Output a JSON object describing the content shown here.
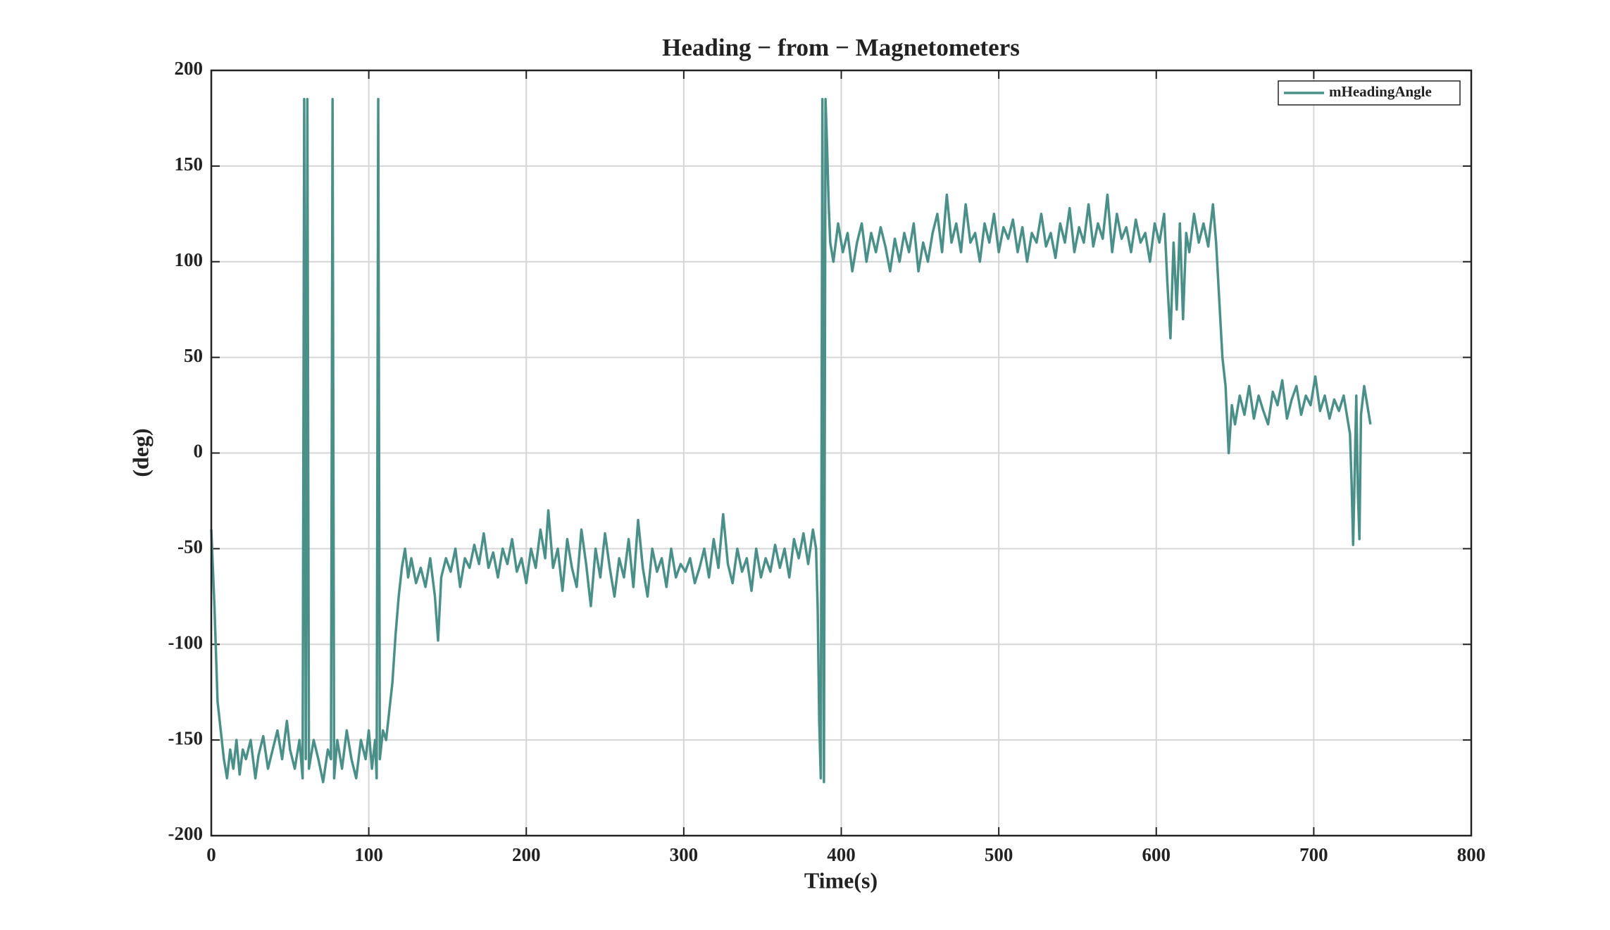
{
  "chart_data": {
    "type": "line",
    "title": "Heading − from − Magnetometers",
    "x_label": "Time(s)",
    "y_label": "(deg)",
    "xlim": [
      0,
      800
    ],
    "xticks": [
      0,
      100,
      200,
      300,
      400,
      500,
      600,
      700,
      800
    ],
    "ylim": [
      -200,
      200
    ],
    "yticks": [
      -200,
      -150,
      -100,
      -50,
      0,
      50,
      100,
      150,
      200
    ],
    "grid": true,
    "legend_position": "upper-right",
    "series": [
      {
        "name": "mHeadingAngle",
        "color": "#4a9088",
        "x": [
          0,
          2,
          4,
          6,
          8,
          10,
          12,
          14,
          16,
          18,
          20,
          22,
          25,
          28,
          30,
          33,
          36,
          39,
          42,
          45,
          48,
          50,
          53,
          56,
          58,
          59,
          60,
          61,
          62,
          65,
          68,
          71,
          74,
          76,
          77,
          78,
          80,
          83,
          86,
          89,
          92,
          95,
          98,
          100,
          102,
          104,
          105,
          106,
          107,
          109,
          111,
          113,
          115,
          117,
          119,
          121,
          123,
          125,
          127,
          130,
          133,
          136,
          139,
          142,
          144,
          146,
          149,
          152,
          155,
          158,
          161,
          164,
          167,
          170,
          173,
          176,
          179,
          182,
          185,
          188,
          191,
          194,
          197,
          200,
          203,
          206,
          209,
          212,
          214,
          217,
          220,
          223,
          226,
          229,
          232,
          235,
          238,
          241,
          244,
          247,
          250,
          253,
          256,
          259,
          262,
          265,
          268,
          271,
          274,
          277,
          280,
          283,
          286,
          289,
          292,
          295,
          298,
          301,
          304,
          307,
          310,
          313,
          316,
          319,
          322,
          325,
          328,
          331,
          334,
          337,
          340,
          343,
          346,
          349,
          352,
          355,
          358,
          361,
          364,
          367,
          370,
          373,
          376,
          379,
          382,
          384,
          385,
          386,
          387,
          388,
          389,
          390,
          391,
          392,
          393,
          395,
          398,
          401,
          404,
          407,
          410,
          413,
          416,
          419,
          422,
          425,
          428,
          431,
          434,
          437,
          440,
          443,
          446,
          449,
          452,
          455,
          458,
          461,
          464,
          467,
          470,
          473,
          476,
          479,
          482,
          485,
          488,
          491,
          494,
          497,
          500,
          503,
          506,
          509,
          512,
          515,
          518,
          521,
          524,
          527,
          530,
          533,
          536,
          539,
          542,
          545,
          548,
          551,
          554,
          557,
          560,
          563,
          566,
          569,
          572,
          575,
          578,
          581,
          584,
          587,
          590,
          593,
          596,
          599,
          602,
          605,
          607,
          609,
          611,
          613,
          615,
          617,
          619,
          621,
          624,
          627,
          630,
          633,
          636,
          638,
          640,
          642,
          644,
          646,
          648,
          650,
          653,
          656,
          659,
          662,
          665,
          668,
          671,
          674,
          677,
          680,
          683,
          686,
          689,
          692,
          695,
          698,
          701,
          704,
          707,
          710,
          713,
          716,
          719,
          721,
          723,
          724,
          725,
          726,
          727,
          728,
          729,
          730,
          732,
          734,
          736
        ],
        "values": [
          -40,
          -80,
          -130,
          -145,
          -160,
          -170,
          -155,
          -165,
          -150,
          -168,
          -155,
          -160,
          -150,
          -170,
          -158,
          -148,
          -165,
          -155,
          -145,
          -160,
          -140,
          -155,
          -165,
          -150,
          -170,
          185,
          -160,
          185,
          -165,
          -150,
          -160,
          -172,
          -155,
          -160,
          185,
          -170,
          -150,
          -165,
          -145,
          -160,
          -170,
          -150,
          -160,
          -145,
          -165,
          -150,
          -170,
          185,
          -160,
          -145,
          -150,
          -135,
          -120,
          -95,
          -75,
          -60,
          -50,
          -65,
          -55,
          -68,
          -60,
          -70,
          -55,
          -75,
          -98,
          -65,
          -55,
          -62,
          -50,
          -70,
          -55,
          -60,
          -48,
          -58,
          -42,
          -60,
          -52,
          -65,
          -50,
          -58,
          -45,
          -62,
          -55,
          -68,
          -50,
          -60,
          -40,
          -55,
          -30,
          -60,
          -50,
          -72,
          -45,
          -60,
          -70,
          -40,
          -58,
          -80,
          -50,
          -65,
          -42,
          -60,
          -75,
          -55,
          -65,
          -45,
          -70,
          -35,
          -60,
          -75,
          -50,
          -62,
          -55,
          -70,
          -50,
          -65,
          -58,
          -62,
          -55,
          -68,
          -60,
          -50,
          -65,
          -45,
          -60,
          -32,
          -58,
          -68,
          -50,
          -62,
          -55,
          -72,
          -50,
          -65,
          -55,
          -62,
          -48,
          -60,
          -50,
          -65,
          -45,
          -55,
          -42,
          -58,
          -40,
          -50,
          -80,
          -140,
          -170,
          185,
          -172,
          185,
          160,
          130,
          110,
          100,
          120,
          105,
          115,
          95,
          110,
          120,
          100,
          115,
          105,
          118,
          108,
          95,
          112,
          100,
          115,
          105,
          120,
          95,
          110,
          100,
          115,
          125,
          105,
          135,
          110,
          120,
          105,
          130,
          110,
          115,
          100,
          120,
          110,
          125,
          105,
          118,
          112,
          122,
          105,
          118,
          100,
          115,
          110,
          125,
          108,
          115,
          102,
          120,
          110,
          128,
          105,
          118,
          110,
          130,
          108,
          120,
          112,
          135,
          105,
          125,
          112,
          118,
          105,
          122,
          110,
          115,
          100,
          120,
          110,
          125,
          90,
          60,
          110,
          75,
          120,
          70,
          115,
          105,
          125,
          110,
          120,
          108,
          130,
          110,
          80,
          50,
          35,
          0,
          25,
          15,
          30,
          20,
          35,
          18,
          30,
          22,
          15,
          32,
          25,
          38,
          18,
          28,
          35,
          20,
          30,
          25,
          40,
          22,
          30,
          18,
          28,
          22,
          30,
          20,
          10,
          -15,
          -48,
          -10,
          30,
          -20,
          -45,
          20,
          35,
          25,
          15
        ]
      }
    ]
  }
}
